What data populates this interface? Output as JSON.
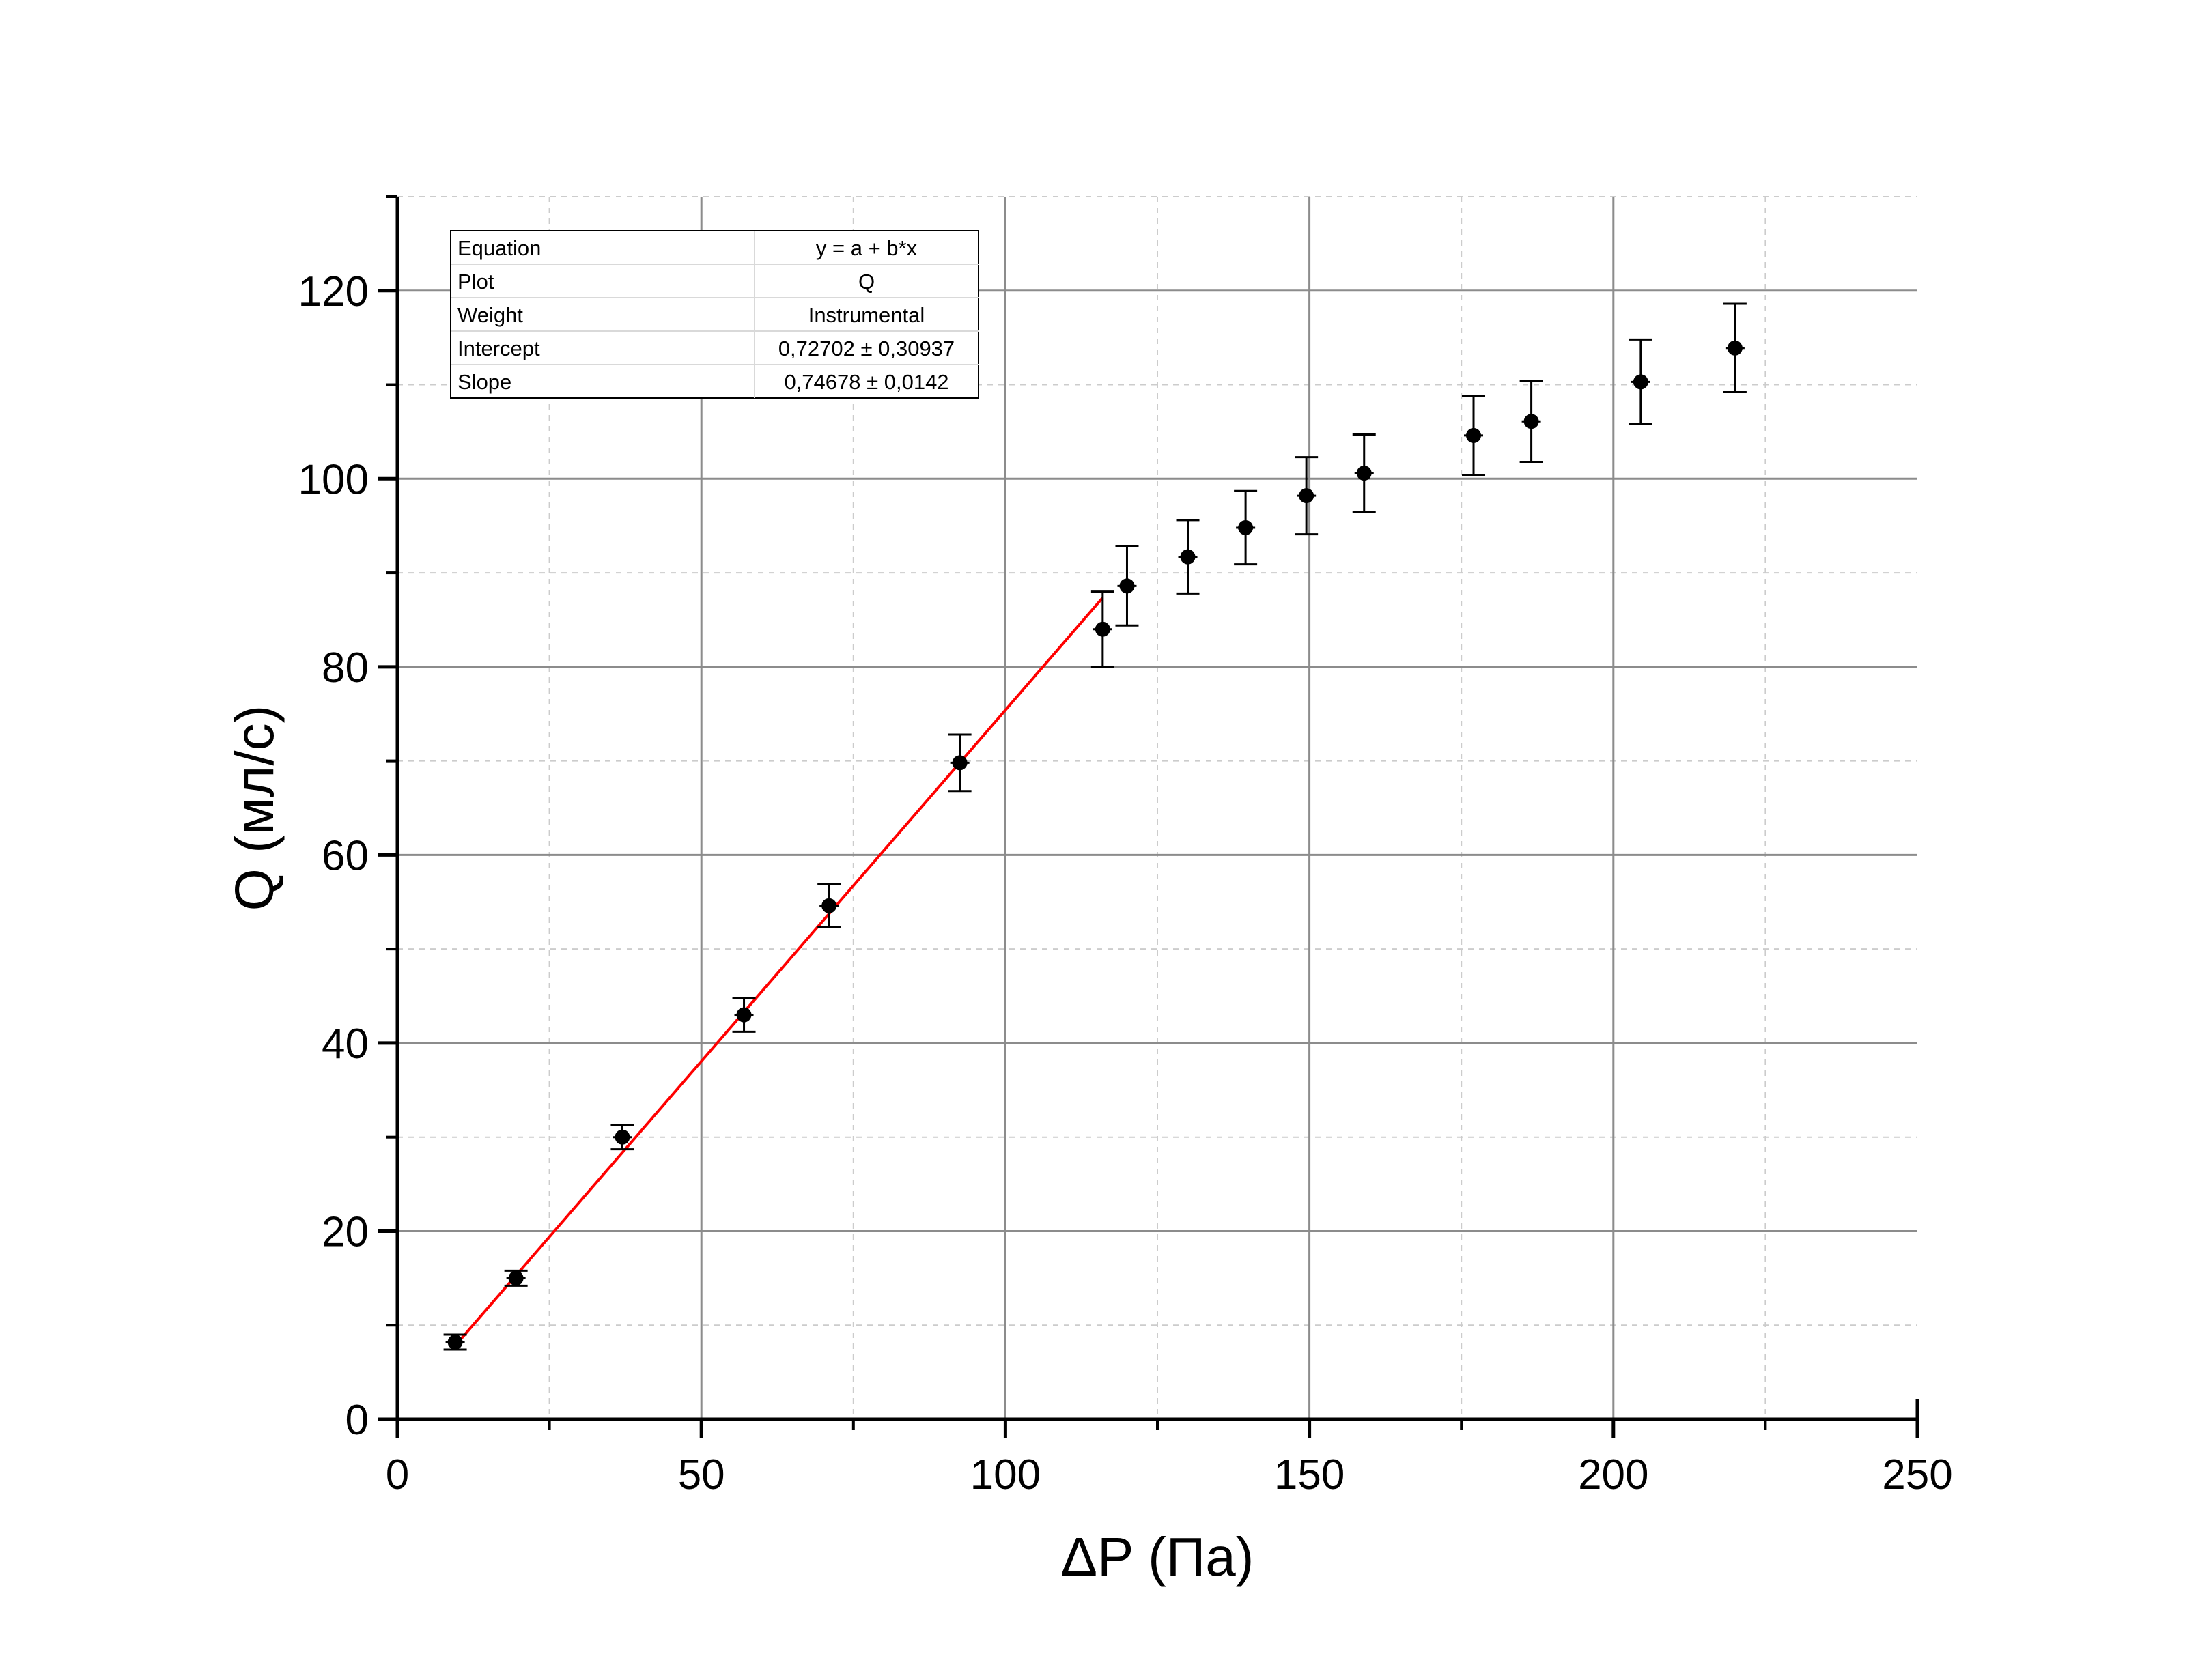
{
  "chart_data": {
    "type": "scatter",
    "xlabel": "ΔP (Па)",
    "ylabel": "Q (мл/с)",
    "xlim": [
      0,
      250
    ],
    "ylim": [
      0,
      130
    ],
    "x_ticks": [
      "0",
      "50",
      "100",
      "150",
      "200",
      "250"
    ],
    "y_ticks": [
      "0",
      "20",
      "40",
      "60",
      "80",
      "100",
      "120"
    ],
    "grid": true,
    "series": [
      {
        "marker": "circle",
        "color": "#000000",
        "x": [
          9.5,
          19.5,
          37,
          57,
          71,
          92.5,
          116,
          120,
          130,
          139.5,
          149.5,
          159,
          177,
          186.5,
          204.5,
          220
        ],
        "y": [
          8.2,
          15.0,
          30.0,
          43.0,
          54.6,
          69.8,
          84.0,
          88.6,
          91.7,
          94.8,
          98.2,
          100.6,
          104.6,
          106.1,
          110.3,
          113.9
        ],
        "y_err": [
          0.8,
          0.8,
          1.3,
          1.8,
          2.3,
          3.0,
          4.0,
          4.2,
          3.9,
          3.9,
          4.1,
          4.1,
          4.2,
          4.3,
          4.5,
          4.7
        ]
      }
    ],
    "fit": {
      "color": "#ff0000",
      "x_range": [
        9.5,
        116
      ],
      "intercept": 0.72702,
      "slope": 0.74678
    },
    "fit_table": {
      "rows": [
        [
          "Equation",
          "y = a + b*x"
        ],
        [
          "Plot",
          "Q"
        ],
        [
          "Weight",
          "Instrumental"
        ],
        [
          "Intercept",
          "0,72702 ± 0,30937"
        ],
        [
          "Slope",
          "0,74678 ± 0,0142"
        ]
      ]
    }
  }
}
